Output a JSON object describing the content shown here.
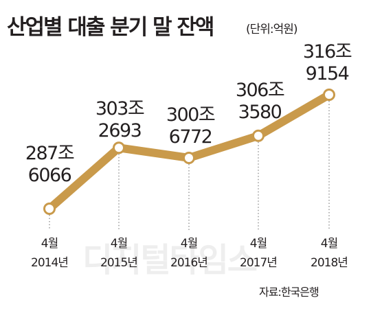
{
  "header": {
    "title": "산업별 대출 분기 말 잔액",
    "unit": "(단위:억원)"
  },
  "footer": {
    "source": "자료:한국은행",
    "watermark": "디지털타임스"
  },
  "colors": {
    "line": "#c99a4b",
    "marker_fill": "#ffffff",
    "text": "#231f20",
    "dotted_guide": "#9a9a9a"
  },
  "chart_data": {
    "type": "line",
    "title": "산업별 대출 분기 말 잔액",
    "unit": "(단위:억원)",
    "categories": [
      [
        "4월",
        "2014년"
      ],
      [
        "4월",
        "2015년"
      ],
      [
        "4월",
        "2016년"
      ],
      [
        "4월",
        "2017년"
      ],
      [
        "4월",
        "2018년"
      ]
    ],
    "values": [
      2876066,
      3032693,
      3006772,
      3063580,
      3169154
    ],
    "data_labels": [
      [
        "287조",
        "6066"
      ],
      [
        "303조",
        "2693"
      ],
      [
        "300조",
        "6772"
      ],
      [
        "306조",
        "3580"
      ],
      [
        "316조",
        "9154"
      ]
    ],
    "grid": false,
    "legend": "none"
  }
}
